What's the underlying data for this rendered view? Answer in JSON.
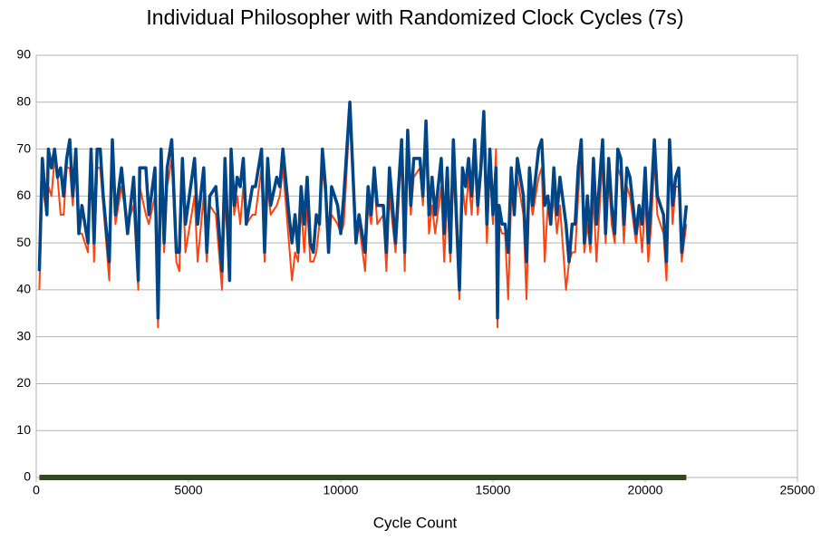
{
  "chart_data": {
    "type": "line",
    "title": "Individual Philosopher with Randomized Clock Cycles (7s)",
    "x_label": "Cycle Count",
    "xlim": [
      0,
      25000
    ],
    "xticks": [
      0,
      5000,
      10000,
      15000,
      20000,
      25000
    ],
    "ylim": [
      0,
      90
    ],
    "yticks": [
      0,
      10,
      20,
      30,
      40,
      50,
      60,
      70,
      80,
      90
    ],
    "grid": true,
    "x": [
      100,
      200,
      350,
      400,
      500,
      600,
      700,
      800,
      900,
      1000,
      1100,
      1200,
      1300,
      1400,
      1500,
      1700,
      1800,
      1900,
      2000,
      2100,
      2200,
      2400,
      2500,
      2600,
      2800,
      3000,
      3200,
      3350,
      3400,
      3600,
      3700,
      3900,
      4000,
      4100,
      4200,
      4300,
      4450,
      4600,
      4700,
      4800,
      4900,
      5200,
      5300,
      5500,
      5600,
      5700,
      5900,
      6100,
      6200,
      6350,
      6400,
      6500,
      6600,
      6700,
      6800,
      6900,
      7100,
      7200,
      7400,
      7500,
      7600,
      7700,
      7900,
      8000,
      8100,
      8300,
      8400,
      8500,
      8600,
      8700,
      8800,
      8900,
      9000,
      9100,
      9200,
      9300,
      9400,
      9500,
      9600,
      9700,
      9900,
      10000,
      10100,
      10300,
      10500,
      10600,
      10800,
      10900,
      11000,
      11100,
      11200,
      11400,
      11500,
      11600,
      11800,
      11900,
      12000,
      12100,
      12200,
      12300,
      12400,
      12600,
      12700,
      12800,
      12900,
      13000,
      13100,
      13300,
      13400,
      13500,
      13600,
      13700,
      13900,
      14000,
      14100,
      14200,
      14300,
      14400,
      14500,
      14600,
      14700,
      14800,
      14900,
      15000,
      15100,
      15150,
      15200,
      15300,
      15400,
      15500,
      15600,
      15700,
      15800,
      16000,
      16100,
      16200,
      16300,
      16500,
      16600,
      16700,
      16800,
      16900,
      17000,
      17100,
      17200,
      17400,
      17500,
      17600,
      17700,
      17800,
      17900,
      18000,
      18100,
      18200,
      18300,
      18400,
      18600,
      18700,
      18800,
      18900,
      19000,
      19100,
      19200,
      19300,
      19400,
      19500,
      19700,
      19800,
      19900,
      20000,
      20100,
      20200,
      20300,
      20400,
      20600,
      20700,
      20800,
      20900,
      21000,
      21100,
      21200,
      21350
    ],
    "series": [
      {
        "color": "#ff420e",
        "width": 2,
        "values": [
          40,
          62,
          56,
          62,
          60,
          68,
          64,
          56,
          56,
          66,
          66,
          58,
          66,
          52,
          52,
          48,
          70,
          46,
          66,
          66,
          58,
          42,
          70,
          54,
          62,
          54,
          58,
          40,
          62,
          56,
          54,
          60,
          32,
          66,
          48,
          62,
          68,
          46,
          44,
          66,
          48,
          60,
          46,
          60,
          46,
          58,
          56,
          40,
          60,
          42,
          68,
          56,
          60,
          54,
          62,
          54,
          56,
          56,
          66,
          46,
          62,
          56,
          58,
          60,
          66,
          50,
          42,
          48,
          46,
          58,
          48,
          58,
          46,
          46,
          48,
          54,
          66,
          60,
          50,
          56,
          54,
          52,
          54,
          78,
          52,
          54,
          44,
          58,
          54,
          64,
          54,
          56,
          44,
          60,
          48,
          58,
          70,
          44,
          72,
          56,
          64,
          66,
          58,
          72,
          52,
          58,
          52,
          62,
          46,
          60,
          46,
          66,
          38,
          62,
          56,
          64,
          56,
          68,
          56,
          64,
          72,
          50,
          66,
          54,
          70,
          32,
          54,
          52,
          52,
          38,
          60,
          58,
          64,
          56,
          38,
          62,
          56,
          64,
          66,
          46,
          58,
          54,
          60,
          52,
          58,
          40,
          46,
          48,
          48,
          60,
          70,
          48,
          54,
          48,
          60,
          46,
          68,
          50,
          64,
          54,
          50,
          66,
          64,
          50,
          62,
          60,
          50,
          56,
          48,
          60,
          46,
          54,
          68,
          56,
          52,
          42,
          70,
          54,
          62,
          62,
          46,
          54
        ]
      },
      {
        "color": "#004586",
        "width": 3.5,
        "values": [
          44,
          68,
          56,
          70,
          66,
          70,
          64,
          66,
          60,
          68,
          72,
          60,
          70,
          52,
          58,
          50,
          70,
          50,
          70,
          70,
          60,
          46,
          72,
          56,
          66,
          52,
          64,
          42,
          66,
          66,
          56,
          66,
          34,
          70,
          50,
          66,
          72,
          48,
          48,
          68,
          54,
          68,
          54,
          66,
          48,
          60,
          62,
          44,
          68,
          42,
          70,
          58,
          64,
          62,
          68,
          54,
          62,
          62,
          70,
          48,
          68,
          58,
          64,
          62,
          70,
          56,
          50,
          56,
          48,
          62,
          54,
          64,
          50,
          48,
          56,
          54,
          70,
          62,
          48,
          62,
          58,
          52,
          60,
          80,
          50,
          56,
          48,
          62,
          56,
          66,
          58,
          58,
          48,
          66,
          50,
          62,
          72,
          48,
          74,
          58,
          68,
          68,
          60,
          76,
          56,
          64,
          56,
          68,
          52,
          66,
          48,
          72,
          40,
          66,
          62,
          68,
          60,
          72,
          58,
          66,
          78,
          54,
          70,
          56,
          66,
          34,
          58,
          54,
          54,
          48,
          66,
          56,
          68,
          60,
          46,
          66,
          58,
          70,
          72,
          58,
          60,
          54,
          66,
          56,
          64,
          54,
          46,
          54,
          54,
          66,
          72,
          50,
          60,
          50,
          68,
          54,
          72,
          52,
          68,
          58,
          52,
          70,
          68,
          54,
          66,
          64,
          52,
          58,
          54,
          66,
          50,
          60,
          72,
          60,
          56,
          46,
          72,
          58,
          64,
          66,
          48,
          58
        ]
      },
      {
        "color": "#2f4a1f",
        "width": 6,
        "x": [
          100,
          21350
        ],
        "values": [
          0,
          0
        ]
      }
    ]
  }
}
